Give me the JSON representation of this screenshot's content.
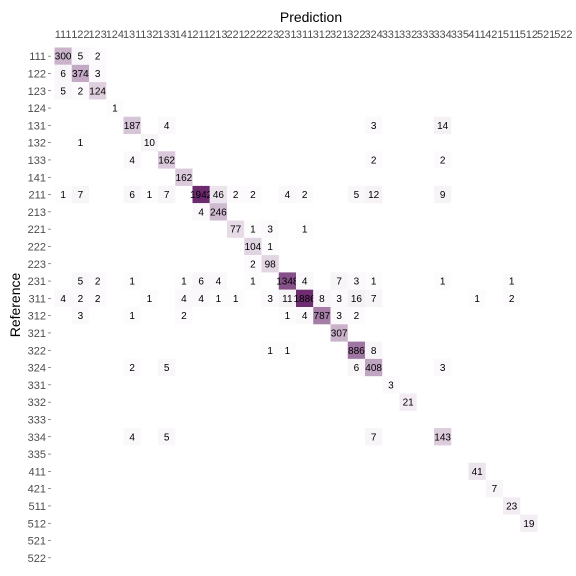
{
  "chart_data": {
    "type": "heatmap",
    "xlabel": "Prediction",
    "ylabel": "Reference",
    "x_categories": [
      "111",
      "122",
      "123",
      "124",
      "131",
      "132",
      "133",
      "141",
      "211",
      "213",
      "221",
      "222",
      "223",
      "231",
      "311",
      "312",
      "321",
      "322",
      "324",
      "331",
      "332",
      "333",
      "334",
      "335",
      "411",
      "421",
      "511",
      "512",
      "521",
      "522"
    ],
    "y_categories": [
      "111",
      "122",
      "123",
      "124",
      "131",
      "132",
      "133",
      "141",
      "211",
      "213",
      "221",
      "222",
      "223",
      "231",
      "311",
      "312",
      "321",
      "322",
      "324",
      "331",
      "332",
      "333",
      "334",
      "335",
      "411",
      "421",
      "511",
      "512",
      "521",
      "522"
    ],
    "grid": false,
    "legend": "none",
    "colors": {
      "low": "#ffffff",
      "high": "#6b2a6e"
    },
    "max_value": 1942,
    "cells": [
      {
        "ref": "111",
        "pred": "111",
        "value": 300
      },
      {
        "ref": "111",
        "pred": "122",
        "value": 5
      },
      {
        "ref": "111",
        "pred": "123",
        "value": 2
      },
      {
        "ref": "122",
        "pred": "111",
        "value": 6
      },
      {
        "ref": "122",
        "pred": "122",
        "value": 374
      },
      {
        "ref": "122",
        "pred": "123",
        "value": 3
      },
      {
        "ref": "123",
        "pred": "111",
        "value": 5
      },
      {
        "ref": "123",
        "pred": "122",
        "value": 2
      },
      {
        "ref": "123",
        "pred": "123",
        "value": 124
      },
      {
        "ref": "124",
        "pred": "124",
        "value": 1
      },
      {
        "ref": "131",
        "pred": "131",
        "value": 187
      },
      {
        "ref": "131",
        "pred": "133",
        "value": 4
      },
      {
        "ref": "131",
        "pred": "324",
        "value": 3
      },
      {
        "ref": "131",
        "pred": "334",
        "value": 14
      },
      {
        "ref": "132",
        "pred": "122",
        "value": 1
      },
      {
        "ref": "132",
        "pred": "132",
        "value": 10
      },
      {
        "ref": "133",
        "pred": "131",
        "value": 4
      },
      {
        "ref": "133",
        "pred": "133",
        "value": 162
      },
      {
        "ref": "133",
        "pred": "324",
        "value": 2
      },
      {
        "ref": "133",
        "pred": "334",
        "value": 2
      },
      {
        "ref": "141",
        "pred": "141",
        "value": 162
      },
      {
        "ref": "211",
        "pred": "111",
        "value": 1
      },
      {
        "ref": "211",
        "pred": "122",
        "value": 7
      },
      {
        "ref": "211",
        "pred": "131",
        "value": 6
      },
      {
        "ref": "211",
        "pred": "132",
        "value": 1
      },
      {
        "ref": "211",
        "pred": "133",
        "value": 7
      },
      {
        "ref": "211",
        "pred": "211",
        "value": 1942
      },
      {
        "ref": "211",
        "pred": "213",
        "value": 46
      },
      {
        "ref": "211",
        "pred": "221",
        "value": 2
      },
      {
        "ref": "211",
        "pred": "222",
        "value": 2
      },
      {
        "ref": "211",
        "pred": "231",
        "value": 4
      },
      {
        "ref": "211",
        "pred": "311",
        "value": 2
      },
      {
        "ref": "211",
        "pred": "322",
        "value": 5
      },
      {
        "ref": "211",
        "pred": "324",
        "value": 12
      },
      {
        "ref": "211",
        "pred": "334",
        "value": 9
      },
      {
        "ref": "213",
        "pred": "211",
        "value": 4
      },
      {
        "ref": "213",
        "pred": "213",
        "value": 246
      },
      {
        "ref": "221",
        "pred": "221",
        "value": 77
      },
      {
        "ref": "221",
        "pred": "222",
        "value": 1
      },
      {
        "ref": "221",
        "pred": "223",
        "value": 3
      },
      {
        "ref": "221",
        "pred": "311",
        "value": 1
      },
      {
        "ref": "222",
        "pred": "222",
        "value": 104
      },
      {
        "ref": "222",
        "pred": "223",
        "value": 1
      },
      {
        "ref": "223",
        "pred": "222",
        "value": 2
      },
      {
        "ref": "223",
        "pred": "223",
        "value": 98
      },
      {
        "ref": "231",
        "pred": "122",
        "value": 5
      },
      {
        "ref": "231",
        "pred": "123",
        "value": 2
      },
      {
        "ref": "231",
        "pred": "131",
        "value": 1
      },
      {
        "ref": "231",
        "pred": "141",
        "value": 1
      },
      {
        "ref": "231",
        "pred": "211",
        "value": 6
      },
      {
        "ref": "231",
        "pred": "213",
        "value": 4
      },
      {
        "ref": "231",
        "pred": "222",
        "value": 1
      },
      {
        "ref": "231",
        "pred": "231",
        "value": 1348
      },
      {
        "ref": "231",
        "pred": "311",
        "value": 4
      },
      {
        "ref": "231",
        "pred": "321",
        "value": 7
      },
      {
        "ref": "231",
        "pred": "322",
        "value": 3
      },
      {
        "ref": "231",
        "pred": "324",
        "value": 1
      },
      {
        "ref": "231",
        "pred": "334",
        "value": 1
      },
      {
        "ref": "231",
        "pred": "511",
        "value": 1
      },
      {
        "ref": "311",
        "pred": "111",
        "value": 4
      },
      {
        "ref": "311",
        "pred": "122",
        "value": 2
      },
      {
        "ref": "311",
        "pred": "123",
        "value": 2
      },
      {
        "ref": "311",
        "pred": "132",
        "value": 1
      },
      {
        "ref": "311",
        "pred": "141",
        "value": 4
      },
      {
        "ref": "311",
        "pred": "211",
        "value": 4
      },
      {
        "ref": "311",
        "pred": "213",
        "value": 1
      },
      {
        "ref": "311",
        "pred": "221",
        "value": 1
      },
      {
        "ref": "311",
        "pred": "223",
        "value": 3
      },
      {
        "ref": "311",
        "pred": "231",
        "value": 11
      },
      {
        "ref": "311",
        "pred": "311",
        "value": 1886
      },
      {
        "ref": "311",
        "pred": "312",
        "value": 8
      },
      {
        "ref": "311",
        "pred": "321",
        "value": 3
      },
      {
        "ref": "311",
        "pred": "322",
        "value": 16
      },
      {
        "ref": "311",
        "pred": "324",
        "value": 7
      },
      {
        "ref": "311",
        "pred": "411",
        "value": 1
      },
      {
        "ref": "311",
        "pred": "511",
        "value": 2
      },
      {
        "ref": "312",
        "pred": "122",
        "value": 3
      },
      {
        "ref": "312",
        "pred": "131",
        "value": 1
      },
      {
        "ref": "312",
        "pred": "141",
        "value": 2
      },
      {
        "ref": "312",
        "pred": "231",
        "value": 1
      },
      {
        "ref": "312",
        "pred": "311",
        "value": 4
      },
      {
        "ref": "312",
        "pred": "312",
        "value": 787
      },
      {
        "ref": "312",
        "pred": "321",
        "value": 3
      },
      {
        "ref": "312",
        "pred": "322",
        "value": 2
      },
      {
        "ref": "321",
        "pred": "321",
        "value": 307
      },
      {
        "ref": "322",
        "pred": "223",
        "value": 1
      },
      {
        "ref": "322",
        "pred": "231",
        "value": 1
      },
      {
        "ref": "322",
        "pred": "322",
        "value": 886
      },
      {
        "ref": "322",
        "pred": "324",
        "value": 8
      },
      {
        "ref": "324",
        "pred": "131",
        "value": 2
      },
      {
        "ref": "324",
        "pred": "133",
        "value": 5
      },
      {
        "ref": "324",
        "pred": "322",
        "value": 6
      },
      {
        "ref": "324",
        "pred": "324",
        "value": 408
      },
      {
        "ref": "324",
        "pred": "334",
        "value": 3
      },
      {
        "ref": "331",
        "pred": "331",
        "value": 3
      },
      {
        "ref": "332",
        "pred": "332",
        "value": 21
      },
      {
        "ref": "334",
        "pred": "131",
        "value": 4
      },
      {
        "ref": "334",
        "pred": "133",
        "value": 5
      },
      {
        "ref": "334",
        "pred": "324",
        "value": 7
      },
      {
        "ref": "334",
        "pred": "334",
        "value": 143
      },
      {
        "ref": "411",
        "pred": "411",
        "value": 41
      },
      {
        "ref": "421",
        "pred": "421",
        "value": 7
      },
      {
        "ref": "511",
        "pred": "511",
        "value": 23
      },
      {
        "ref": "512",
        "pred": "512",
        "value": 19
      }
    ]
  }
}
